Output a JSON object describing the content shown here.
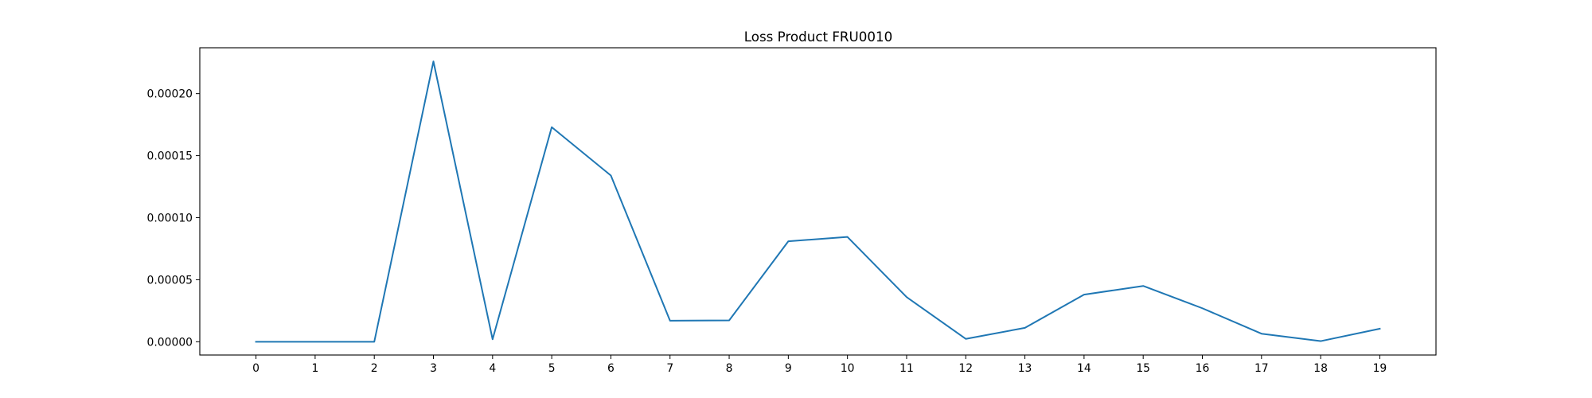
{
  "chart_data": {
    "type": "line",
    "title": "Loss Product FRU0010",
    "xlabel": "",
    "ylabel": "",
    "x": [
      0,
      1,
      2,
      3,
      4,
      5,
      6,
      7,
      8,
      9,
      10,
      11,
      12,
      13,
      14,
      15,
      16,
      17,
      18,
      19
    ],
    "series": [
      {
        "values": [
          0.0,
          0.0,
          0.0,
          0.000226,
          2e-06,
          0.000173,
          0.000134,
          1.7e-05,
          1.72e-05,
          8.1e-05,
          8.45e-05,
          3.6e-05,
          2.3e-06,
          1.12e-05,
          3.8e-05,
          4.5e-05,
          2.7e-05,
          6.5e-06,
          5e-07,
          1.05e-05
        ],
        "color": "#1f77b4"
      }
    ],
    "xlim": [
      -0.95,
      19.95
    ],
    "ylim": [
      -1.07e-05,
      0.000237
    ],
    "x_ticks": [
      "0",
      "1",
      "2",
      "3",
      "4",
      "5",
      "6",
      "7",
      "8",
      "9",
      "10",
      "11",
      "12",
      "13",
      "14",
      "15",
      "16",
      "17",
      "18",
      "19"
    ],
    "y_ticks": [
      {
        "value": 0.0,
        "label": "0.00000"
      },
      {
        "value": 5e-05,
        "label": "0.00005"
      },
      {
        "value": 0.0001,
        "label": "0.00010"
      },
      {
        "value": 0.00015,
        "label": "0.00015"
      },
      {
        "value": 0.0002,
        "label": "0.00020"
      }
    ],
    "grid": false,
    "legend": "none"
  }
}
